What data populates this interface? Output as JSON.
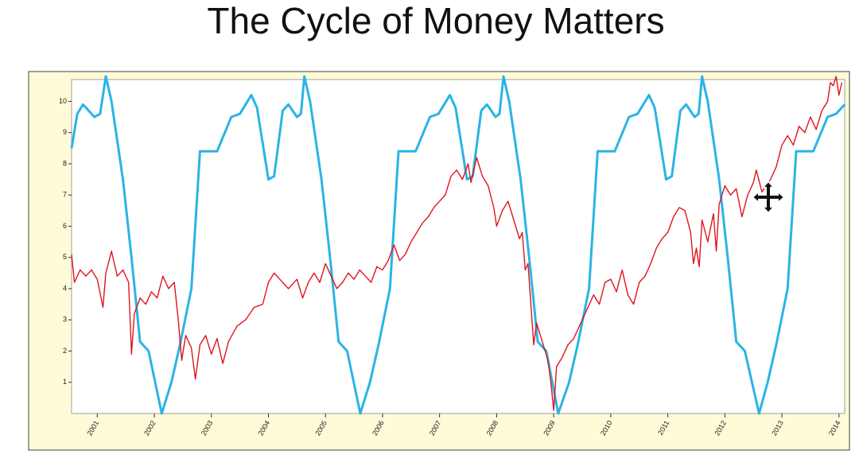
{
  "chart_data": {
    "type": "line",
    "title": "The Cycle of Money Matters",
    "xlim": [
      2000.55,
      2014.1
    ],
    "xticks": [
      2001,
      2002,
      2003,
      2004,
      2005,
      2006,
      2007,
      2008,
      2009,
      2010,
      2011,
      2012,
      2013,
      2014
    ],
    "ylim": [
      0,
      10.7
    ],
    "yticks": [
      1,
      2,
      3,
      4,
      5,
      6,
      7,
      8,
      9,
      10
    ],
    "grid": false,
    "series": [
      {
        "color": "#2bb3e6",
        "x": [
          2000.55,
          2000.65,
          2000.75,
          2000.95,
          2001.05,
          2001.15,
          2001.25,
          2001.45,
          2001.6,
          2001.75,
          2001.9,
          2002.13,
          2002.3,
          2002.45,
          2002.65,
          2002.8,
          2003.1,
          2003.35,
          2003.5,
          2003.7,
          2003.8,
          2004.0,
          2004.1,
          2004.25,
          2004.35,
          2004.5,
          2004.57,
          2004.63,
          2004.73,
          2004.93,
          2005.08,
          2005.23,
          2005.38,
          2005.61,
          2005.78,
          2005.93,
          2006.13,
          2006.28,
          2006.58,
          2006.83,
          2006.98,
          2007.18,
          2007.28,
          2007.48,
          2007.58,
          2007.73,
          2007.83,
          2007.98,
          2008.05,
          2008.12,
          2008.22,
          2008.42,
          2008.57,
          2008.72,
          2008.87,
          2009.08,
          2009.27,
          2009.42,
          2009.62,
          2009.77,
          2010.07,
          2010.32,
          2010.47,
          2010.67,
          2010.77,
          2010.97,
          2011.07,
          2011.22,
          2011.32,
          2011.47,
          2011.54,
          2011.6,
          2011.7,
          2011.9,
          2012.05,
          2012.2,
          2012.35,
          2012.6,
          2012.75,
          2012.9,
          2013.1,
          2013.25,
          2013.55,
          2013.8,
          2013.95,
          2014.1
        ],
        "values": [
          8.5,
          9.6,
          9.9,
          9.5,
          9.6,
          10.8,
          10.0,
          7.5,
          5.0,
          2.3,
          2.0,
          0,
          1.0,
          2.2,
          4.0,
          8.4,
          8.4,
          9.5,
          9.6,
          10.2,
          9.8,
          7.5,
          7.6,
          9.7,
          9.9,
          9.5,
          9.6,
          10.8,
          10.0,
          7.5,
          5.0,
          2.3,
          2.0,
          0,
          1.0,
          2.2,
          4.0,
          8.4,
          8.4,
          9.5,
          9.6,
          10.2,
          9.8,
          7.5,
          7.6,
          9.7,
          9.9,
          9.5,
          9.6,
          10.8,
          10.0,
          7.5,
          5.0,
          2.3,
          2.0,
          0,
          1.0,
          2.2,
          4.0,
          8.4,
          8.4,
          9.5,
          9.6,
          10.2,
          9.8,
          7.5,
          7.6,
          9.7,
          9.9,
          9.5,
          9.6,
          10.8,
          10.0,
          7.5,
          5.0,
          2.3,
          2.0,
          0,
          1.0,
          2.2,
          4.0,
          8.4,
          8.4,
          9.5,
          9.6,
          9.9
        ]
      },
      {
        "color": "#e0141e",
        "x": [
          2000.55,
          2000.6,
          2000.7,
          2000.8,
          2000.9,
          2001.0,
          2001.1,
          2001.15,
          2001.25,
          2001.35,
          2001.45,
          2001.55,
          2001.6,
          2001.65,
          2001.75,
          2001.85,
          2001.95,
          2002.05,
          2002.15,
          2002.25,
          2002.35,
          2002.42,
          2002.48,
          2002.55,
          2002.65,
          2002.72,
          2002.8,
          2002.9,
          2003.0,
          2003.1,
          2003.2,
          2003.3,
          2003.45,
          2003.6,
          2003.75,
          2003.9,
          2004.0,
          2004.1,
          2004.2,
          2004.35,
          2004.5,
          2004.6,
          2004.7,
          2004.8,
          2004.9,
          2005.0,
          2005.1,
          2005.2,
          2005.3,
          2005.4,
          2005.5,
          2005.6,
          2005.7,
          2005.8,
          2005.9,
          2006.0,
          2006.1,
          2006.2,
          2006.3,
          2006.4,
          2006.5,
          2006.6,
          2006.7,
          2006.8,
          2006.9,
          2007.0,
          2007.1,
          2007.2,
          2007.3,
          2007.4,
          2007.5,
          2007.55,
          2007.65,
          2007.75,
          2007.85,
          2007.95,
          2008.0,
          2008.1,
          2008.2,
          2008.3,
          2008.4,
          2008.45,
          2008.5,
          2008.55,
          2008.65,
          2008.7,
          2008.8,
          2008.9,
          2008.95,
          2009.0,
          2009.05,
          2009.15,
          2009.25,
          2009.35,
          2009.5,
          2009.6,
          2009.7,
          2009.8,
          2009.9,
          2010.0,
          2010.1,
          2010.2,
          2010.3,
          2010.4,
          2010.5,
          2010.6,
          2010.7,
          2010.8,
          2010.9,
          2011.0,
          2011.1,
          2011.2,
          2011.3,
          2011.4,
          2011.45,
          2011.5,
          2011.55,
          2011.6,
          2011.7,
          2011.8,
          2011.85,
          2011.9,
          2012.0,
          2012.1,
          2012.2,
          2012.3,
          2012.4,
          2012.5,
          2012.55,
          2012.65,
          2012.8,
          2012.9,
          2013.0,
          2013.1,
          2013.2,
          2013.3,
          2013.4,
          2013.5,
          2013.6,
          2013.7,
          2013.8,
          2013.85,
          2013.9,
          2013.95,
          2014.0,
          2014.05
        ],
        "values": [
          5.1,
          4.2,
          4.6,
          4.4,
          4.6,
          4.3,
          3.4,
          4.5,
          5.2,
          4.4,
          4.6,
          4.2,
          1.9,
          3.2,
          3.7,
          3.5,
          3.9,
          3.7,
          4.4,
          4.0,
          4.2,
          3.0,
          1.7,
          2.5,
          2.1,
          1.1,
          2.2,
          2.5,
          1.9,
          2.4,
          1.6,
          2.3,
          2.8,
          3.0,
          3.4,
          3.5,
          4.2,
          4.5,
          4.3,
          4.0,
          4.3,
          3.7,
          4.2,
          4.5,
          4.2,
          4.8,
          4.4,
          4.0,
          4.2,
          4.5,
          4.3,
          4.6,
          4.4,
          4.2,
          4.7,
          4.6,
          4.9,
          5.4,
          4.9,
          5.1,
          5.5,
          5.8,
          6.1,
          6.3,
          6.6,
          6.8,
          7.0,
          7.6,
          7.8,
          7.5,
          8.0,
          7.4,
          8.2,
          7.6,
          7.3,
          6.6,
          6.0,
          6.5,
          6.8,
          6.2,
          5.6,
          5.8,
          4.6,
          4.8,
          2.2,
          2.9,
          2.3,
          1.7,
          1.0,
          0.1,
          1.5,
          1.8,
          2.2,
          2.4,
          3.0,
          3.4,
          3.8,
          3.5,
          4.2,
          4.3,
          3.9,
          4.6,
          3.8,
          3.5,
          4.2,
          4.4,
          4.8,
          5.3,
          5.6,
          5.8,
          6.3,
          6.6,
          6.5,
          5.8,
          4.8,
          5.3,
          4.7,
          6.2,
          5.5,
          6.4,
          5.2,
          6.7,
          7.3,
          7.0,
          7.2,
          6.3,
          7.0,
          7.4,
          7.8,
          7.1,
          7.5,
          7.9,
          8.6,
          8.9,
          8.6,
          9.2,
          9.0,
          9.5,
          9.1,
          9.7,
          10.0,
          10.6,
          10.5,
          10.8,
          10.2,
          10.6
        ]
      }
    ]
  }
}
